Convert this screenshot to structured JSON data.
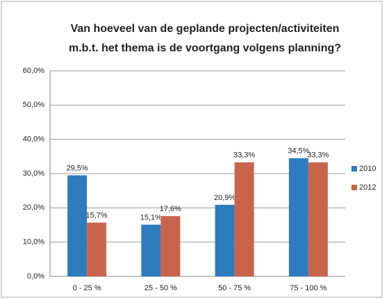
{
  "chart_data": {
    "type": "bar",
    "title": [
      "Van hoeveel van de geplande projecten/activiteiten",
      "m.b.t. het thema is de voortgang volgens planning?"
    ],
    "categories": [
      "0 - 25 %",
      "25 - 50 %",
      "50 - 75 %",
      "75 - 100 %"
    ],
    "series": [
      {
        "name": "2010",
        "color": "#2e7cc0",
        "values": [
          29.5,
          15.1,
          20.9,
          34.5
        ],
        "value_labels": [
          "29,5%",
          "15,1%",
          "20,9%",
          "34,5%"
        ]
      },
      {
        "name": "2012",
        "color": "#c9644c",
        "values": [
          15.7,
          17.6,
          33.3,
          33.3
        ],
        "value_labels": [
          "15,7%",
          "17,6%",
          "33,3%",
          "33,3%"
        ]
      }
    ],
    "ylim": [
      0,
      60
    ],
    "yticks": [
      {
        "value": 0,
        "label": "0,0%"
      },
      {
        "value": 10,
        "label": "10,0%"
      },
      {
        "value": 20,
        "label": "20,0%"
      },
      {
        "value": 30,
        "label": "30,0%"
      },
      {
        "value": 40,
        "label": "40,0%"
      },
      {
        "value": 50,
        "label": "50,0%"
      },
      {
        "value": 60,
        "label": "60,0%"
      }
    ],
    "grid": true,
    "legend": "right"
  }
}
